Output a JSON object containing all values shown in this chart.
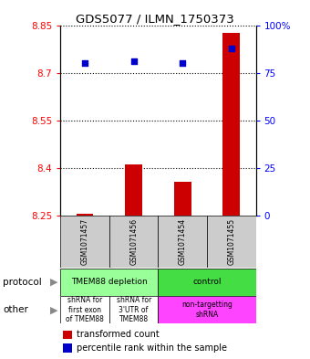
{
  "title": "GDS5077 / ILMN_1750373",
  "samples": [
    "GSM1071457",
    "GSM1071456",
    "GSM1071454",
    "GSM1071455"
  ],
  "transformed_counts": [
    8.255,
    8.41,
    8.355,
    8.825
  ],
  "percentile_ranks": [
    80,
    81,
    80,
    88
  ],
  "ylim": [
    8.25,
    8.85
  ],
  "yticks": [
    8.25,
    8.4,
    8.55,
    8.7,
    8.85
  ],
  "ytick_labels": [
    "8.25",
    "8.4",
    "8.55",
    "8.7",
    "8.85"
  ],
  "right_yticks": [
    0,
    25,
    50,
    75,
    100
  ],
  "right_ytick_labels": [
    "0",
    "25",
    "50",
    "75",
    "100%"
  ],
  "bar_color": "#cc0000",
  "dot_color": "#0000cc",
  "protocol_labels": [
    "TMEM88 depletion",
    "control"
  ],
  "protocol_colors": [
    "#99ff99",
    "#44dd44"
  ],
  "other_labels": [
    "shRNA for\nfirst exon\nof TMEM88",
    "shRNA for\n3'UTR of\nTMEM88",
    "non-targetting\nshRNA"
  ],
  "other_colors": [
    "#ffffff",
    "#ffffff",
    "#ff44ff"
  ],
  "sample_bg_color": "#cccccc",
  "legend_bar_color": "#cc0000",
  "legend_dot_color": "#0000cc",
  "bar_width": 0.35
}
